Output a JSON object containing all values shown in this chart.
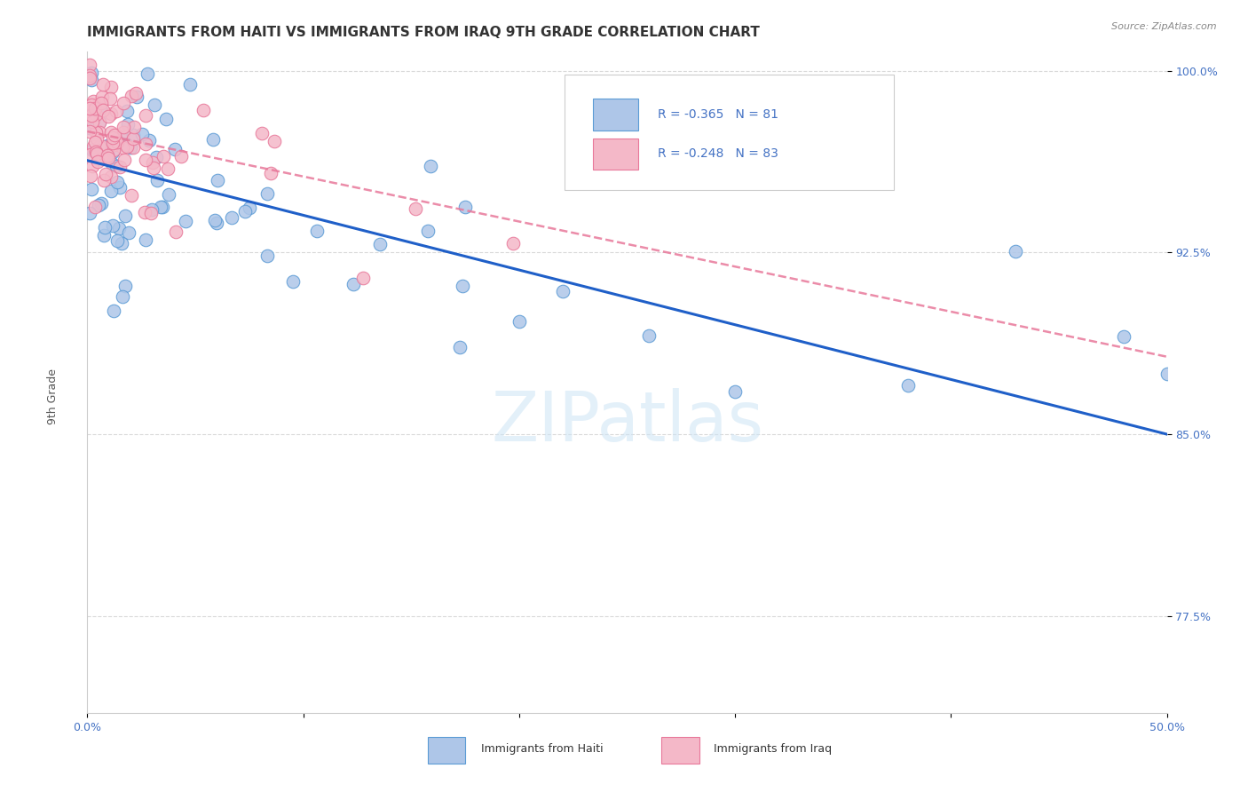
{
  "title": "IMMIGRANTS FROM HAITI VS IMMIGRANTS FROM IRAQ 9TH GRADE CORRELATION CHART",
  "source": "Source: ZipAtlas.com",
  "ylabel": "9th Grade",
  "watermark": "ZIPatlas",
  "series": [
    {
      "name": "Immigrants from Haiti",
      "color": "#aec6e8",
      "edge_color": "#5b9bd5",
      "R": -0.365,
      "N": 81,
      "line_color": "#1f5fc8",
      "line_style": "solid"
    },
    {
      "name": "Immigrants from Iraq",
      "color": "#f4b8c8",
      "edge_color": "#e8789a",
      "R": -0.248,
      "N": 83,
      "line_color": "#e8789a",
      "line_style": "dashed"
    }
  ],
  "xmin": 0.0,
  "xmax": 0.5,
  "ymin": 0.735,
  "ymax": 1.008,
  "yticks": [
    1.0,
    0.925,
    0.85,
    0.775
  ],
  "ytick_labels": [
    "100.0%",
    "92.5%",
    "85.0%",
    "77.5%"
  ],
  "xticks": [
    0.0,
    0.1,
    0.2,
    0.3,
    0.4,
    0.5
  ],
  "xtick_labels": [
    "0.0%",
    "",
    "",
    "",
    "",
    "50.0%"
  ],
  "background_color": "#ffffff",
  "grid_color": "#d0d0d0",
  "title_color": "#333333",
  "axis_color": "#4472c4",
  "ylabel_color": "#555555",
  "title_fontsize": 11,
  "tick_fontsize": 9,
  "haiti_line_x0": 0.0,
  "haiti_line_x1": 0.5,
  "haiti_line_y0": 0.963,
  "haiti_line_y1": 0.85,
  "iraq_line_x0": 0.0,
  "iraq_line_x1": 0.5,
  "iraq_line_y0": 0.975,
  "iraq_line_y1": 0.882
}
